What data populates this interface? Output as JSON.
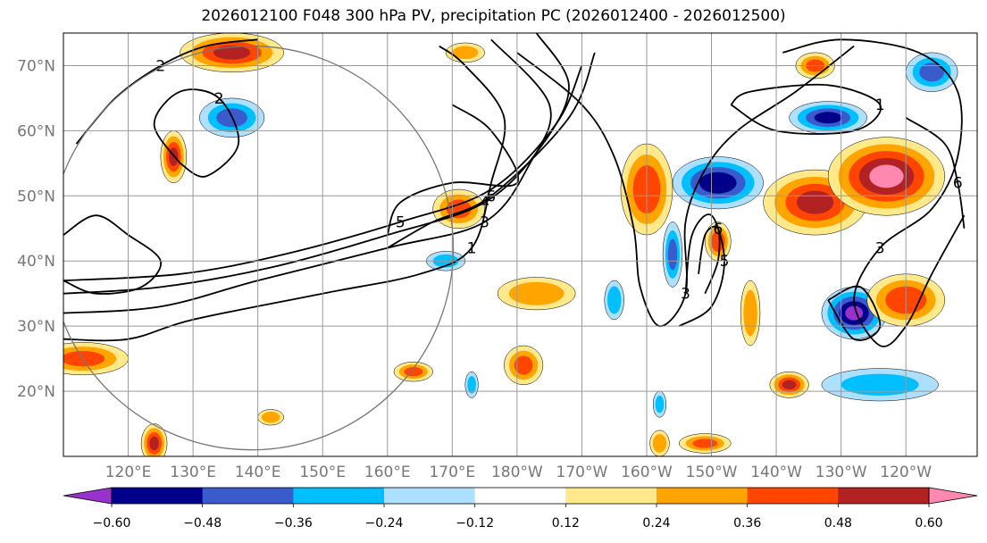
{
  "chart_data": {
    "type": "heatmap",
    "title": "2026012100 F048 300 hPa PV, precipitation PC (2026012400 - 2026012500)",
    "map": {
      "projection": "cylindrical",
      "lon_range": [
        110,
        251
      ],
      "lat_range": [
        10,
        75
      ],
      "grid": true,
      "lat_ticks": [
        {
          "value": 20,
          "label": "20°N"
        },
        {
          "value": 30,
          "label": "30°N"
        },
        {
          "value": 40,
          "label": "40°N"
        },
        {
          "value": 50,
          "label": "50°N"
        },
        {
          "value": 60,
          "label": "60°N"
        },
        {
          "value": 70,
          "label": "70°N"
        }
      ],
      "lon_ticks": [
        {
          "value": 120,
          "label": "120°E"
        },
        {
          "value": 130,
          "label": "130°E"
        },
        {
          "value": 140,
          "label": "140°E"
        },
        {
          "value": 150,
          "label": "150°E"
        },
        {
          "value": 160,
          "label": "160°E"
        },
        {
          "value": 170,
          "label": "170°E"
        },
        {
          "value": 180,
          "label": "180°W"
        },
        {
          "value": 190,
          "label": "170°W"
        },
        {
          "value": 200,
          "label": "160°W"
        },
        {
          "value": 210,
          "label": "150°W"
        },
        {
          "value": 220,
          "label": "140°W"
        },
        {
          "value": 230,
          "label": "130°W"
        },
        {
          "value": 240,
          "label": "120°W"
        }
      ],
      "domain_circle": {
        "lon": 139,
        "lat": 42,
        "radius_deg_lat": 31
      }
    },
    "colorbar": {
      "orientation": "horizontal",
      "extend": "both",
      "levels": [
        -0.72,
        -0.6,
        -0.48,
        -0.36,
        -0.24,
        -0.12,
        0.12,
        0.24,
        0.36,
        0.48,
        0.6,
        0.72
      ],
      "colors": [
        "#9932CC",
        "#00008B",
        "#3A5BCC",
        "#00BFFF",
        "#ADDFFF",
        "#FFFFFF",
        "#FFE98A",
        "#FFA500",
        "#FF4500",
        "#B22222",
        "#FF88B0"
      ],
      "tick_labels": [
        "−0.60",
        "−0.48",
        "−0.36",
        "−0.24",
        "−0.12",
        "0.12",
        "0.24",
        "0.36",
        "0.48",
        "0.60"
      ],
      "tick_values": [
        -0.6,
        -0.48,
        -0.36,
        -0.24,
        -0.12,
        0.12,
        0.24,
        0.36,
        0.48,
        0.6
      ]
    },
    "precip_pc_blobs": [
      {
        "lon": 136,
        "lat": 72,
        "rx": 8,
        "ry": 3,
        "value": 0.5
      },
      {
        "lon": 172,
        "lat": 72,
        "rx": 3,
        "ry": 1.5,
        "value": 0.3
      },
      {
        "lon": 127,
        "lat": 56,
        "rx": 2,
        "ry": 4,
        "value": 0.5
      },
      {
        "lon": 136,
        "lat": 62,
        "rx": 5,
        "ry": 3,
        "value": -0.4
      },
      {
        "lon": 171,
        "lat": 48,
        "rx": 4,
        "ry": 3,
        "value": 0.4
      },
      {
        "lon": 169,
        "lat": 40,
        "rx": 3,
        "ry": 1.5,
        "value": -0.3
      },
      {
        "lon": 113,
        "lat": 25,
        "rx": 7,
        "ry": 2.5,
        "value": 0.4
      },
      {
        "lon": 181,
        "lat": 24,
        "rx": 3,
        "ry": 3,
        "value": 0.4
      },
      {
        "lon": 164,
        "lat": 23,
        "rx": 3,
        "ry": 1.5,
        "value": 0.4
      },
      {
        "lon": 183,
        "lat": 35,
        "rx": 6,
        "ry": 2.5,
        "value": 0.35
      },
      {
        "lon": 173,
        "lat": 21,
        "rx": 1,
        "ry": 2,
        "value": -0.3
      },
      {
        "lon": 142,
        "lat": 16,
        "rx": 2,
        "ry": 1.2,
        "value": 0.35
      },
      {
        "lon": 200,
        "lat": 51,
        "rx": 4,
        "ry": 7,
        "value": 0.45
      },
      {
        "lon": 211,
        "lat": 52,
        "rx": 7,
        "ry": 4,
        "value": -0.55
      },
      {
        "lon": 204,
        "lat": 41,
        "rx": 1.5,
        "ry": 5,
        "value": -0.4
      },
      {
        "lon": 211,
        "lat": 43,
        "rx": 2,
        "ry": 3,
        "value": 0.45
      },
      {
        "lon": 226,
        "lat": 49,
        "rx": 8,
        "ry": 5,
        "value": 0.5
      },
      {
        "lon": 237,
        "lat": 53,
        "rx": 9,
        "ry": 6,
        "value": 0.62
      },
      {
        "lon": 228,
        "lat": 62,
        "rx": 6,
        "ry": 2.5,
        "value": -0.5
      },
      {
        "lon": 244,
        "lat": 69,
        "rx": 4,
        "ry": 3,
        "value": -0.4
      },
      {
        "lon": 226,
        "lat": 70,
        "rx": 3,
        "ry": 2,
        "value": 0.4
      },
      {
        "lon": 232,
        "lat": 32,
        "rx": 5,
        "ry": 4,
        "value": -0.6
      },
      {
        "lon": 240,
        "lat": 34,
        "rx": 6,
        "ry": 4,
        "value": 0.45
      },
      {
        "lon": 236,
        "lat": 21,
        "rx": 9,
        "ry": 2.5,
        "value": -0.3
      },
      {
        "lon": 222,
        "lat": 21,
        "rx": 3,
        "ry": 2,
        "value": 0.5
      },
      {
        "lon": 216,
        "lat": 32,
        "rx": 1.5,
        "ry": 5,
        "value": 0.35
      },
      {
        "lon": 209,
        "lat": 12,
        "rx": 4,
        "ry": 1.5,
        "value": 0.4
      },
      {
        "lon": 202,
        "lat": 12,
        "rx": 1.5,
        "ry": 2,
        "value": 0.35
      },
      {
        "lon": 202,
        "lat": 18,
        "rx": 1,
        "ry": 2,
        "value": -0.3
      },
      {
        "lon": 195,
        "lat": 34,
        "rx": 1.5,
        "ry": 3,
        "value": -0.35
      },
      {
        "lon": 124,
        "lat": 12,
        "rx": 2,
        "ry": 3,
        "value": 0.5
      }
    ],
    "pv_contours": [
      {
        "label": "1",
        "points": [
          [
            110,
            28
          ],
          [
            120,
            28
          ],
          [
            130,
            31
          ],
          [
            150,
            35
          ],
          [
            165,
            38
          ],
          [
            173,
            42
          ],
          [
            176,
            52
          ],
          [
            178,
            62
          ],
          [
            172,
            70
          ],
          [
            168,
            73
          ]
        ]
      },
      {
        "label": "3",
        "points": [
          [
            110,
            32
          ],
          [
            125,
            33
          ],
          [
            140,
            37
          ],
          [
            160,
            42
          ],
          [
            175,
            46
          ],
          [
            182,
            55
          ],
          [
            185,
            64
          ],
          [
            176,
            74
          ]
        ]
      },
      {
        "label": "4",
        "points": [
          [
            110,
            35
          ],
          [
            125,
            36
          ],
          [
            142,
            39
          ],
          [
            160,
            44
          ],
          [
            175,
            49
          ],
          [
            184,
            58
          ],
          [
            188,
            67
          ],
          [
            183,
            75
          ]
        ]
      },
      {
        "label": "5",
        "points": [
          [
            110,
            37
          ],
          [
            128,
            38
          ],
          [
            144,
            41
          ],
          [
            162,
            46
          ],
          [
            176,
            51
          ],
          [
            186,
            61
          ],
          [
            190,
            70
          ]
        ]
      },
      {
        "label": "6",
        "points": [
          [
            160,
            42
          ],
          [
            167,
            46
          ],
          [
            176,
            50
          ],
          [
            188,
            62
          ],
          [
            192,
            72
          ]
        ]
      },
      {
        "label": "3",
        "points": [
          [
            180,
            72
          ],
          [
            190,
            64
          ],
          [
            195,
            56
          ],
          [
            198,
            45
          ],
          [
            199,
            36
          ],
          [
            202,
            30
          ],
          [
            206,
            35
          ],
          [
            206,
            46
          ],
          [
            209,
            54
          ],
          [
            214,
            60
          ],
          [
            223,
            66
          ],
          [
            232,
            73
          ]
        ]
      },
      {
        "label": "5",
        "points": [
          [
            206,
            35
          ],
          [
            207,
            44
          ],
          [
            210,
            47
          ],
          [
            212,
            40
          ],
          [
            210,
            33
          ],
          [
            205,
            30
          ]
        ]
      },
      {
        "label": "6",
        "points": [
          [
            208,
            38
          ],
          [
            209,
            44
          ],
          [
            211,
            45
          ],
          [
            211,
            40
          ],
          [
            209,
            35
          ]
        ]
      },
      {
        "label": "2",
        "points": [
          [
            112,
            58
          ],
          [
            118,
            65
          ],
          [
            125,
            70
          ],
          [
            132,
            73
          ],
          [
            140,
            74
          ]
        ]
      },
      {
        "label": "2",
        "points": [
          [
            128,
            55
          ],
          [
            124,
            61
          ],
          [
            128,
            66
          ],
          [
            134,
            65
          ],
          [
            137,
            58
          ],
          [
            132,
            53
          ],
          [
            128,
            55
          ]
        ]
      },
      {
        "label": "1",
        "points": [
          [
            213,
            64
          ],
          [
            220,
            60
          ],
          [
            232,
            60
          ],
          [
            236,
            64
          ],
          [
            228,
            67
          ],
          [
            216,
            66
          ],
          [
            213,
            64
          ]
        ]
      },
      {
        "label": "3",
        "points": [
          [
            221,
            72
          ],
          [
            230,
            74
          ],
          [
            242,
            72
          ],
          [
            248,
            66
          ],
          [
            248,
            56
          ],
          [
            244,
            48
          ],
          [
            236,
            42
          ],
          [
            232,
            34
          ],
          [
            236,
            27
          ],
          [
            240,
            30
          ],
          [
            244,
            38
          ],
          [
            249,
            47
          ]
        ]
      },
      {
        "label": "",
        "points": [
          [
            228,
            34
          ],
          [
            232,
            28
          ],
          [
            236,
            30
          ],
          [
            233,
            36
          ],
          [
            228,
            34
          ]
        ]
      },
      {
        "label": "6",
        "points": [
          [
            240,
            62
          ],
          [
            246,
            58
          ],
          [
            248,
            52
          ],
          [
            249,
            45
          ]
        ]
      },
      {
        "label": "",
        "points": [
          [
            110,
            44
          ],
          [
            115,
            47
          ],
          [
            120,
            44
          ],
          [
            125,
            40
          ],
          [
            122,
            36
          ],
          [
            115,
            35
          ],
          [
            110,
            37
          ]
        ]
      },
      {
        "label": "",
        "points": [
          [
            160,
            44
          ],
          [
            162,
            49
          ],
          [
            170,
            52
          ],
          [
            180,
            52
          ],
          [
            176,
            60
          ],
          [
            170,
            64
          ]
        ]
      }
    ]
  }
}
